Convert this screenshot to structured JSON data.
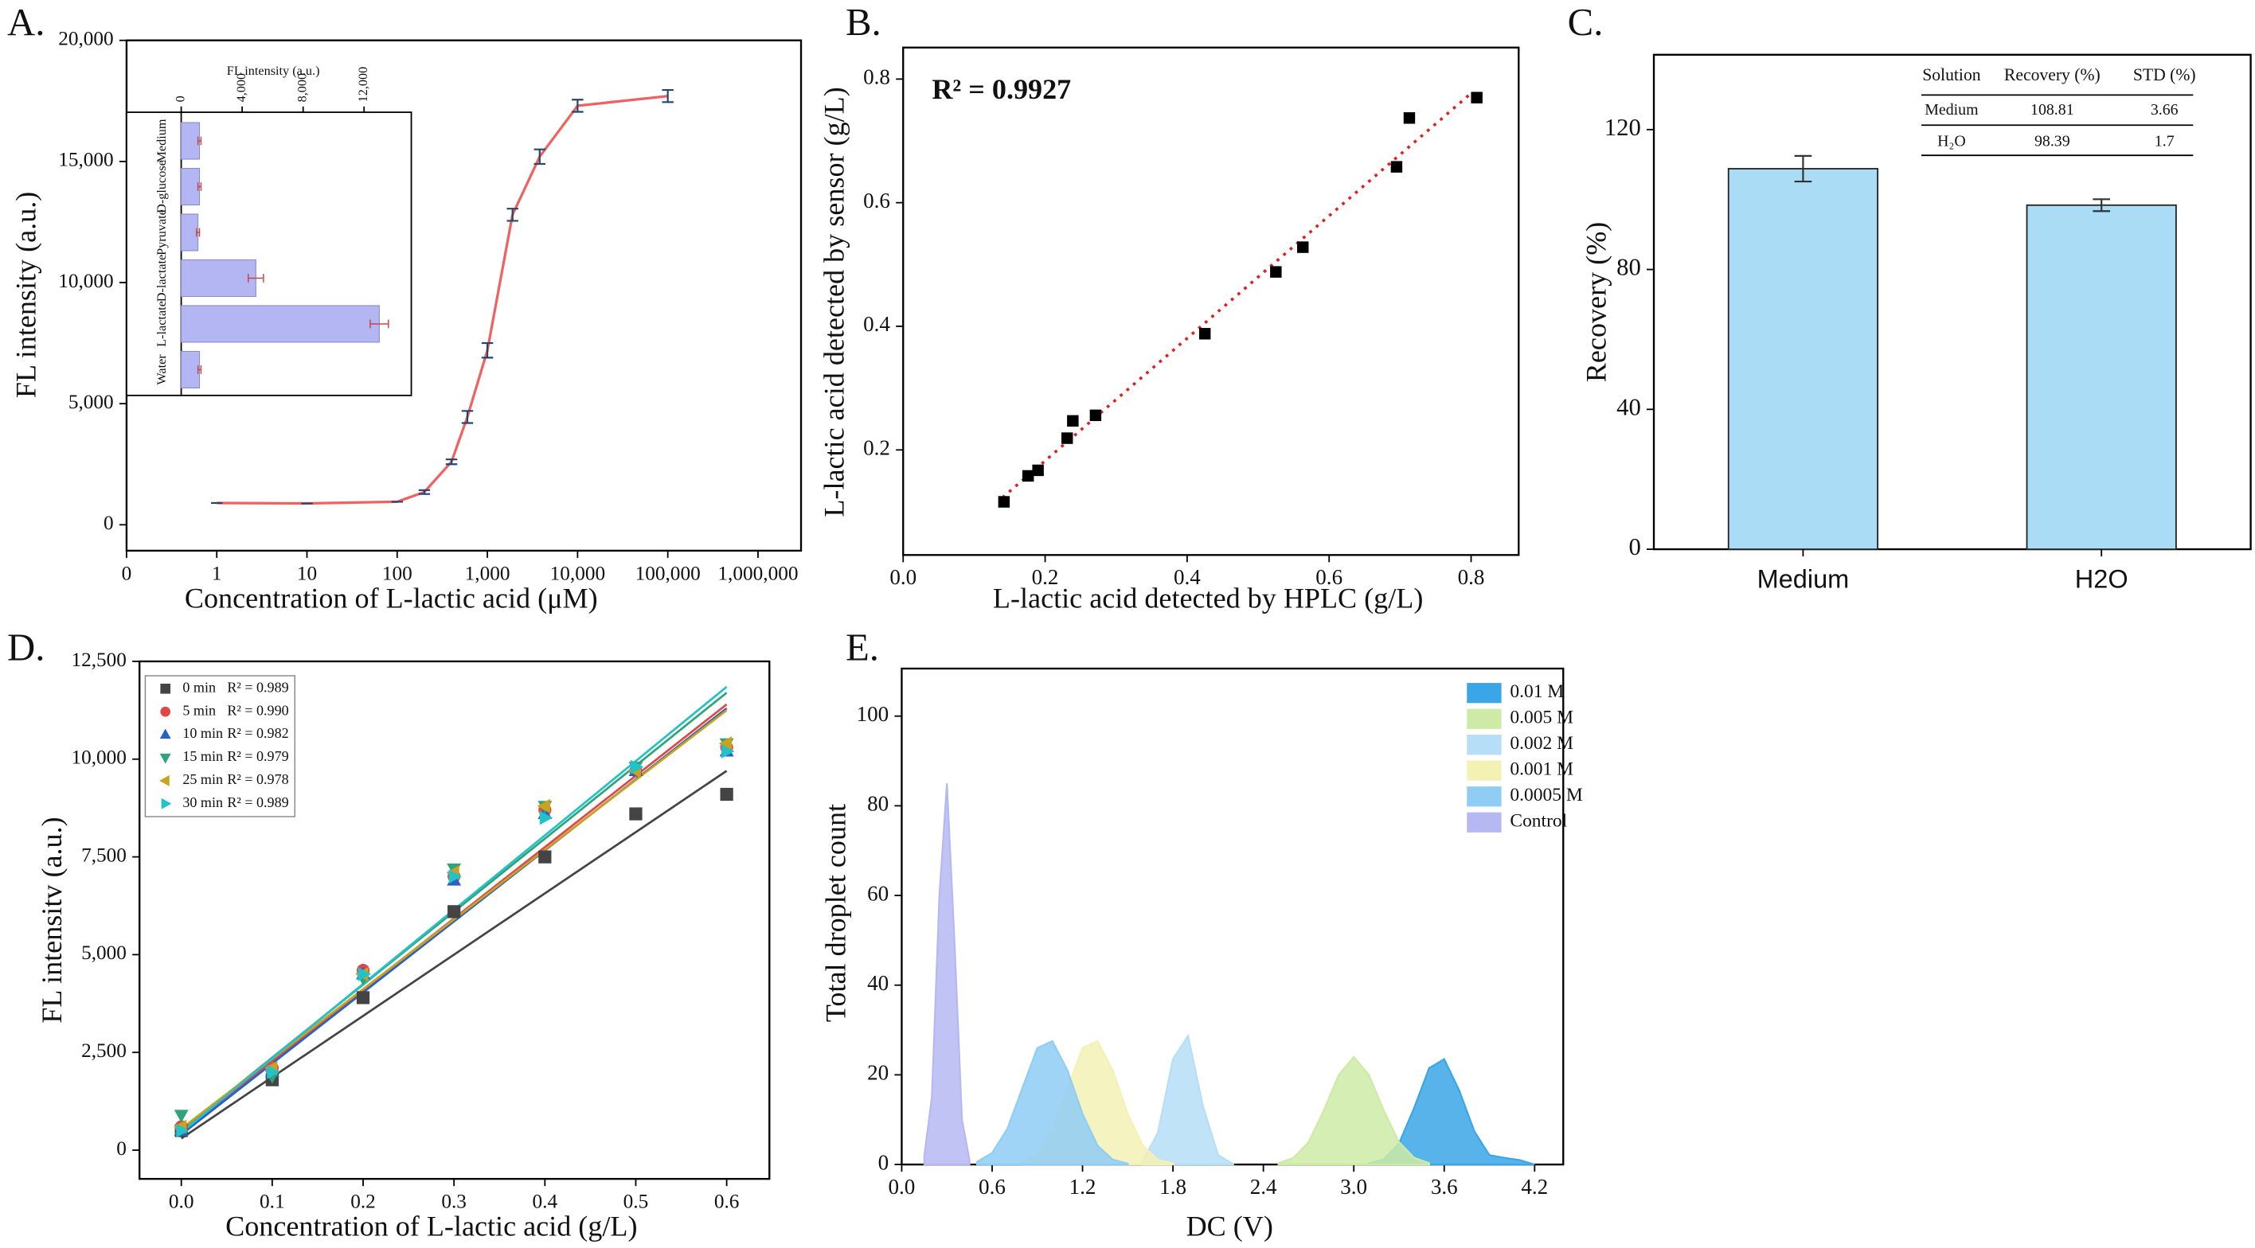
{
  "chart_data": [
    {
      "type": "line",
      "panel_label": "A.",
      "xlabel": "Concentration of L-lactic acid (μM)",
      "ylabel": "FL intensity (a.u.)",
      "x_scale": "log",
      "x": [
        1,
        10,
        100,
        200,
        400,
        600,
        1000,
        1900,
        3800,
        10000,
        100000
      ],
      "values": [
        900,
        880,
        950,
        1350,
        2600,
        4450,
        7200,
        12800,
        15200,
        17300,
        17700
      ],
      "errors": [
        0,
        0,
        0,
        80,
        100,
        250,
        300,
        250,
        300,
        250,
        250
      ],
      "color": "#f06262",
      "xlim": [
        0.1,
        3000000
      ],
      "xticks": [
        {
          "value": 0.1,
          "label": "0"
        },
        1,
        10,
        100,
        {
          "value": 1000,
          "label": "1,000"
        },
        {
          "value": 10000,
          "label": "10,000"
        },
        {
          "value": 100000,
          "label": "100,000"
        },
        {
          "value": 1000000,
          "label": "1,000,000"
        }
      ],
      "ylim": [
        -1070,
        20000
      ],
      "yticks": [
        0,
        {
          "value": 5000,
          "label": "5,000"
        },
        {
          "value": 10000,
          "label": "10,000"
        },
        {
          "value": 15000,
          "label": "15,000"
        },
        {
          "value": 20000,
          "label": "20,000"
        }
      ],
      "inset": {
        "type": "bar",
        "orientation": "horizontal",
        "xlabel": "FL intensity (a.u.)",
        "categories": [
          "Medium",
          "D-glucose",
          "Pyruvate",
          "D-lactate",
          "L-lactate",
          "Water"
        ],
        "values": [
          1200,
          1200,
          1100,
          4900,
          13000,
          1200
        ],
        "errors": [
          100,
          100,
          100,
          500,
          600,
          100
        ],
        "color": "#b3b6f2",
        "xlim": [
          0,
          15100
        ],
        "xticks": [
          0,
          {
            "value": 4000,
            "label": "4,000"
          },
          {
            "value": 8000,
            "label": "8,000"
          },
          {
            "value": 12000,
            "label": "12,000"
          }
        ]
      }
    },
    {
      "type": "scatter",
      "panel_label": "B.",
      "xlabel": "L-lactic acid detected by HPLC (g/L)",
      "ylabel": "L-lactic acid detected by sensor (g/L)",
      "annotation": "R² = 0.9927",
      "x": [
        0.142,
        0.176,
        0.19,
        0.231,
        0.239,
        0.271,
        0.425,
        0.525,
        0.563,
        0.695,
        0.713,
        0.808
      ],
      "values": [
        0.116,
        0.158,
        0.167,
        0.219,
        0.247,
        0.256,
        0.388,
        0.488,
        0.528,
        0.658,
        0.737,
        0.77
      ],
      "color": "#000000",
      "trendline": {
        "x": [
          0.14,
          0.8
        ],
        "y": [
          0.123,
          0.777
        ],
        "color": "#e02020"
      },
      "xlim": [
        0,
        0.867
      ],
      "xticks": [
        {
          "value": 0,
          "label": "0.0"
        },
        0.2,
        0.4,
        0.6,
        0.8
      ],
      "ylim": [
        0.03,
        0.851
      ],
      "yticks": [
        0.2,
        0.4,
        0.6,
        0.8
      ]
    },
    {
      "type": "bar",
      "panel_label": "C.",
      "ylabel": "Recovery (%)",
      "categories": [
        "Medium",
        "H2O"
      ],
      "values": [
        108.81,
        98.39
      ],
      "errors": [
        3.66,
        1.7
      ],
      "color": "#aadcf6",
      "ylim": [
        0,
        141.4
      ],
      "yticks": [
        0,
        40,
        80,
        120
      ],
      "table": {
        "header": [
          "Solution",
          "Recovery (%)",
          "STD (%)"
        ],
        "rows": [
          [
            "Medium",
            "108.81",
            "3.66"
          ],
          [
            "H₂O",
            "98.39",
            "1.7"
          ]
        ]
      }
    },
    {
      "type": "scatter",
      "panel_label": "D.",
      "xlabel": "Concentration of L-lactic acid (g/L)",
      "ylabel": "FL intensitv (a.u.)",
      "x": [
        0,
        0.1,
        0.2,
        0.3,
        0.4,
        0.5,
        0.6
      ],
      "fit_x": [
        0,
        0.6
      ],
      "series": [
        {
          "name": "0 min",
          "r2": "R² = 0.989",
          "marker": "square",
          "color": "#444444",
          "values": [
            500,
            1800,
            3900,
            6100,
            7500,
            8600,
            9100
          ],
          "fit": [
            300,
            9700
          ]
        },
        {
          "name": "5 min",
          "r2": "R² = 0.990",
          "marker": "circle",
          "color": "#e04848",
          "values": [
            600,
            2100,
            4600,
            7000,
            8700,
            9700,
            10300
          ],
          "fit": [
            450,
            11400
          ]
        },
        {
          "name": "10 min",
          "r2": "R² = 0.982",
          "marker": "triangle-up",
          "color": "#2a62c4",
          "values": [
            500,
            2000,
            4500,
            6900,
            8600,
            9700,
            10200
          ],
          "fit": [
            400,
            11300
          ]
        },
        {
          "name": "15 min",
          "r2": "R² = 0.979",
          "marker": "triangle-down",
          "color": "#2fa37a",
          "values": [
            900,
            1900,
            4400,
            7200,
            8800,
            9800,
            10400
          ],
          "fit": [
            500,
            11700
          ]
        },
        {
          "name": "25 min",
          "r2": "R² = 0.978",
          "marker": "triangle-left",
          "color": "#c9a21e",
          "values": [
            600,
            2100,
            4500,
            7100,
            8800,
            9700,
            10400
          ],
          "fit": [
            550,
            11250
          ]
        },
        {
          "name": "30 min",
          "r2": "R² = 0.989",
          "marker": "triangle-right",
          "color": "#22c2c8",
          "values": [
            500,
            2000,
            4500,
            7000,
            8500,
            9800,
            10200
          ],
          "fit": [
            450,
            11850
          ]
        }
      ],
      "xlim": [
        -0.046,
        0.647
      ],
      "xticks": [
        {
          "value": 0,
          "label": "0.0"
        },
        0.1,
        0.2,
        0.3,
        0.4,
        0.5,
        0.6
      ],
      "ylim": [
        -735,
        12500
      ],
      "yticks": [
        0,
        {
          "value": 2500,
          "label": "2,500"
        },
        {
          "value": 5000,
          "label": "5,000"
        },
        {
          "value": 7500,
          "label": "7,500"
        },
        {
          "value": 10000,
          "label": "10,000"
        },
        {
          "value": 12500,
          "label": "12,500"
        }
      ]
    },
    {
      "type": "area",
      "panel_label": "E.",
      "xlabel": "DC (V)",
      "ylabel": "Total droplet count",
      "series": [
        {
          "name": "0.01 M",
          "color": "#3aa6e6",
          "x": [
            3.1,
            3.2,
            3.3,
            3.4,
            3.5,
            3.6,
            3.7,
            3.8,
            3.9,
            4.0,
            4.1,
            4.2
          ],
          "values": [
            0.2,
            1.2,
            4.7,
            12.6,
            21.5,
            23.5,
            16.5,
            7.4,
            2.1,
            1.5,
            1,
            0
          ]
        },
        {
          "name": "0.005 M",
          "color": "#cdeba6",
          "x": [
            2.5,
            2.6,
            2.7,
            2.8,
            2.9,
            3.0,
            3.1,
            3.2,
            3.3,
            3.4,
            3.5
          ],
          "values": [
            0.3,
            1.5,
            5,
            12,
            20,
            24,
            20,
            12,
            5,
            1.5,
            0.3
          ]
        },
        {
          "name": "0.002 M",
          "color": "#b6def6",
          "x": [
            1.6,
            1.7,
            1.8,
            1.9,
            2.0,
            2.1,
            2.2
          ],
          "values": [
            0.8,
            7.1,
            23.5,
            28.7,
            12.9,
            2.1,
            0.1
          ]
        },
        {
          "name": "0.001 M",
          "color": "#f3f1b4",
          "x": [
            0.8,
            0.9,
            1.0,
            1.1,
            1.2,
            1.3,
            1.4,
            1.5,
            1.6,
            1.7,
            1.8
          ],
          "values": [
            0.6,
            2.6,
            7.9,
            17,
            26,
            27.5,
            21,
            11.3,
            4.2,
            1.1,
            0.2
          ]
        },
        {
          "name": "0.0005 M",
          "color": "#8fcdf4",
          "x": [
            0.5,
            0.6,
            0.7,
            0.8,
            0.9,
            1.0,
            1.1,
            1.2,
            1.3,
            1.4,
            1.5
          ],
          "values": [
            0.6,
            2.6,
            7.9,
            17,
            26,
            27.5,
            21,
            11.3,
            4.2,
            1.1,
            0.2
          ]
        },
        {
          "name": "Control",
          "color": "#b6b8f2",
          "x": [
            0.15,
            0.2,
            0.25,
            0.3,
            0.35,
            0.4,
            0.45
          ],
          "values": [
            2,
            15,
            60,
            85,
            50,
            10,
            1
          ]
        }
      ],
      "xlim": [
        0,
        4.39
      ],
      "xticks": [
        {
          "value": 0,
          "label": "0.0"
        },
        0.6,
        1.2,
        1.8,
        2.4,
        {
          "value": 3,
          "label": "3.0"
        },
        3.6,
        4.2
      ],
      "ylim": [
        0,
        110.6
      ],
      "yticks": [
        0,
        20,
        40,
        60,
        80,
        100
      ]
    }
  ]
}
